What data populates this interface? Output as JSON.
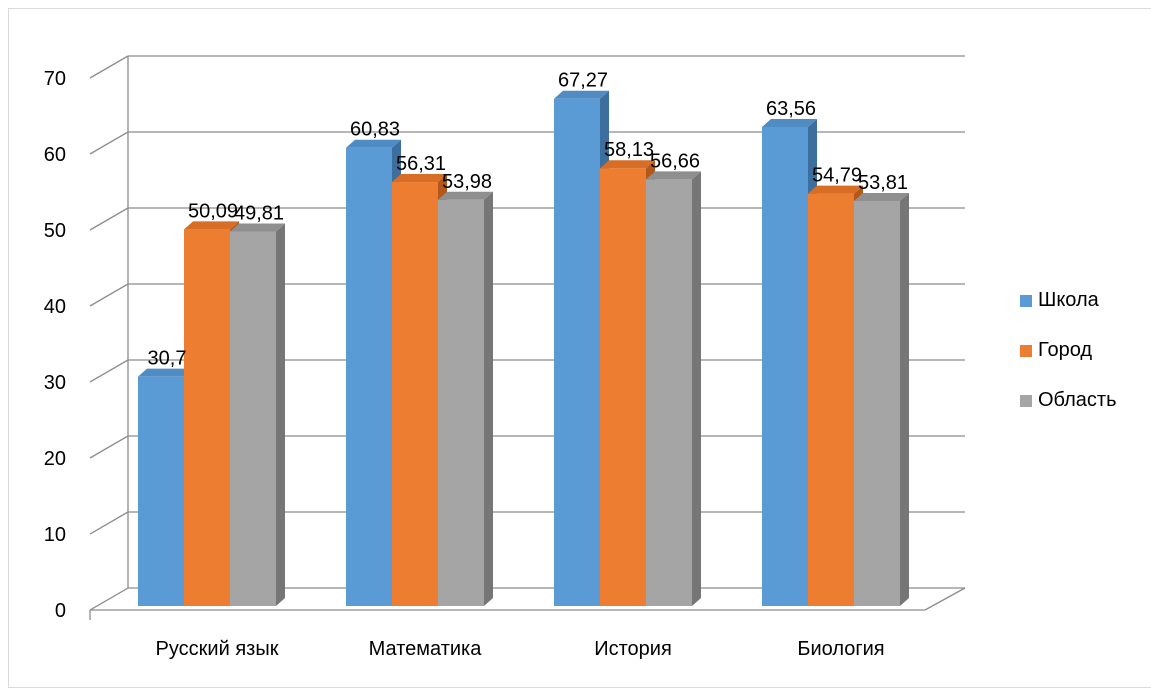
{
  "chart_data": {
    "type": "bar",
    "categories": [
      "Русский язык",
      "Математика",
      "История",
      "Биология"
    ],
    "series": [
      {
        "name": "Школа",
        "values": [
          30.7,
          60.83,
          67.27,
          63.56
        ],
        "labels": [
          "30,7",
          "60,83",
          "67,27",
          "63,56"
        ],
        "color": "#5b9bd5",
        "top_color": "#4f8cc4",
        "side_color": "#3d6f9e"
      },
      {
        "name": "Город",
        "values": [
          50.09,
          56.31,
          58.13,
          54.79
        ],
        "labels": [
          "50,09",
          "56,31",
          "58,13",
          "54,79"
        ],
        "color": "#ed7d31",
        "top_color": "#d86d25",
        "side_color": "#b4581a"
      },
      {
        "name": "Область",
        "values": [
          49.81,
          53.98,
          56.66,
          53.81
        ],
        "labels": [
          "49,81",
          "53,98",
          "56,66",
          "53,81"
        ],
        "color": "#a5a5a5",
        "top_color": "#8f8f8f",
        "side_color": "#767676"
      }
    ],
    "yticks": [
      "0",
      "10",
      "20",
      "30",
      "40",
      "50",
      "60",
      "70"
    ],
    "ylim": [
      0,
      70
    ],
    "grid": true,
    "legend_position": "right"
  }
}
